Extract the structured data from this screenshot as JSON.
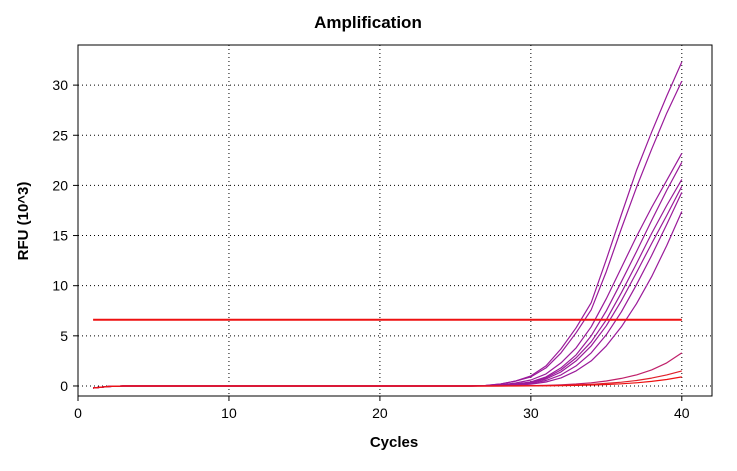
{
  "chart_data": {
    "type": "line",
    "title": "Amplification",
    "xlabel": "Cycles",
    "ylabel": "RFU (10^3)",
    "xlim": [
      0,
      42
    ],
    "ylim": [
      -1,
      34
    ],
    "x_ticks": [
      0,
      10,
      20,
      30,
      40
    ],
    "y_ticks": [
      0,
      5,
      10,
      15,
      20,
      25,
      30
    ],
    "grid": true,
    "legend": "none",
    "threshold": {
      "value": 6.6,
      "x_start": 1,
      "x_end": 40,
      "color": "#ee1111"
    },
    "series_color": "#9a1a9a",
    "x": [
      1,
      2,
      3,
      4,
      5,
      6,
      7,
      8,
      9,
      10,
      11,
      12,
      13,
      14,
      15,
      16,
      17,
      18,
      19,
      20,
      21,
      22,
      23,
      24,
      25,
      26,
      27,
      28,
      29,
      30,
      31,
      32,
      33,
      34,
      35,
      36,
      37,
      38,
      39,
      40
    ],
    "series": [
      {
        "color": "#9a1a9a",
        "values": [
          -0.2,
          -0.05,
          0,
          0,
          0,
          0,
          0,
          0,
          0,
          0,
          0,
          0,
          0,
          0,
          0,
          0,
          0,
          0,
          0,
          0,
          0,
          0,
          0,
          0,
          0,
          0,
          0.05,
          0.2,
          0.5,
          1.0,
          2.0,
          3.7,
          5.8,
          8.3,
          12.6,
          17.1,
          21.5,
          25.3,
          28.9,
          32.3
        ]
      },
      {
        "color": "#9a1a9a",
        "values": [
          -0.2,
          -0.05,
          0,
          0,
          0,
          0,
          0,
          0,
          0,
          0,
          0,
          0,
          0,
          0,
          0,
          0,
          0,
          0,
          0,
          0,
          0,
          0,
          0,
          0,
          0,
          0,
          0.05,
          0.2,
          0.5,
          0.9,
          1.8,
          3.3,
          5.3,
          7.6,
          11.4,
          15.7,
          19.8,
          23.6,
          27.2,
          30.4
        ]
      },
      {
        "color": "#9a1a9a",
        "values": [
          -0.2,
          -0.05,
          0,
          0,
          0,
          0,
          0,
          0,
          0,
          0,
          0,
          0,
          0,
          0,
          0,
          0,
          0,
          0,
          0,
          0,
          0,
          0,
          0,
          0,
          0,
          0,
          0.03,
          0.1,
          0.3,
          0.6,
          1.2,
          2.3,
          3.8,
          5.9,
          8.7,
          11.8,
          14.9,
          17.8,
          20.5,
          23.2
        ]
      },
      {
        "color": "#9a1a9a",
        "values": [
          -0.2,
          -0.05,
          0,
          0,
          0,
          0,
          0,
          0,
          0,
          0,
          0,
          0,
          0,
          0,
          0,
          0,
          0,
          0,
          0,
          0,
          0,
          0,
          0,
          0,
          0,
          0,
          0.02,
          0.08,
          0.2,
          0.4,
          0.9,
          1.8,
          3.1,
          5.0,
          7.5,
          10.4,
          13.4,
          16.5,
          19.5,
          22.3
        ]
      },
      {
        "color": "#9a1a9a",
        "values": [
          -0.2,
          -0.05,
          0,
          0,
          0,
          0,
          0,
          0,
          0,
          0,
          0,
          0,
          0,
          0,
          0,
          0,
          0,
          0,
          0,
          0,
          0,
          0,
          0,
          0,
          0,
          0,
          0.02,
          0.07,
          0.18,
          0.38,
          0.8,
          1.6,
          2.8,
          4.4,
          6.6,
          9.3,
          12.2,
          15.2,
          18.0,
          20.6
        ]
      },
      {
        "color": "#9a1a9a",
        "values": [
          -0.2,
          -0.05,
          0,
          0,
          0,
          0,
          0,
          0,
          0,
          0,
          0,
          0,
          0,
          0,
          0,
          0,
          0,
          0,
          0,
          0,
          0,
          0,
          0,
          0,
          0,
          0,
          0.02,
          0.06,
          0.15,
          0.32,
          0.7,
          1.4,
          2.5,
          4.0,
          6.0,
          8.5,
          11.3,
          14.2,
          17.0,
          19.9
        ]
      },
      {
        "color": "#9a1a9a",
        "values": [
          -0.2,
          -0.05,
          0,
          0,
          0,
          0,
          0,
          0,
          0,
          0,
          0,
          0,
          0,
          0,
          0,
          0,
          0,
          0,
          0,
          0,
          0,
          0,
          0,
          0,
          0,
          0,
          0.01,
          0.05,
          0.12,
          0.25,
          0.55,
          1.1,
          2.0,
          3.3,
          5.1,
          7.4,
          10.1,
          13.0,
          16.1,
          19.3
        ]
      },
      {
        "color": "#9a1a9a",
        "values": [
          -0.2,
          -0.05,
          0,
          0,
          0,
          0,
          0,
          0,
          0,
          0,
          0,
          0,
          0,
          0,
          0,
          0,
          0,
          0,
          0,
          0,
          0,
          0,
          0,
          0,
          0,
          0,
          0.01,
          0.03,
          0.08,
          0.18,
          0.4,
          0.8,
          1.5,
          2.5,
          4.0,
          5.9,
          8.2,
          10.9,
          14.0,
          17.4
        ]
      },
      {
        "color": "#c0206a",
        "values": [
          -0.2,
          -0.05,
          0,
          0,
          0,
          0,
          0,
          0,
          0,
          0,
          0,
          0,
          0,
          0,
          0,
          0,
          0,
          0,
          0,
          0,
          0,
          0,
          0,
          0,
          0,
          0,
          0,
          0.01,
          0.02,
          0.04,
          0.07,
          0.12,
          0.2,
          0.32,
          0.5,
          0.75,
          1.1,
          1.6,
          2.3,
          3.3
        ]
      },
      {
        "color": "#e0202a",
        "values": [
          -0.2,
          -0.05,
          0,
          0,
          0,
          0,
          0,
          0,
          0,
          0,
          0,
          0,
          0,
          0,
          0,
          0,
          0,
          0,
          0,
          0,
          0,
          0,
          0,
          0,
          0,
          0,
          0,
          0,
          0.01,
          0.02,
          0.04,
          0.07,
          0.11,
          0.17,
          0.26,
          0.38,
          0.55,
          0.78,
          1.1,
          1.5
        ]
      },
      {
        "color": "#ee1111",
        "values": [
          -0.2,
          -0.05,
          0,
          0,
          0,
          0,
          0,
          0,
          0,
          0,
          0,
          0,
          0,
          0,
          0,
          0,
          0,
          0,
          0,
          0,
          0,
          0,
          0,
          0,
          0,
          0,
          0,
          0,
          0,
          0.01,
          0.02,
          0.04,
          0.06,
          0.1,
          0.15,
          0.22,
          0.32,
          0.46,
          0.65,
          0.9
        ]
      }
    ]
  }
}
